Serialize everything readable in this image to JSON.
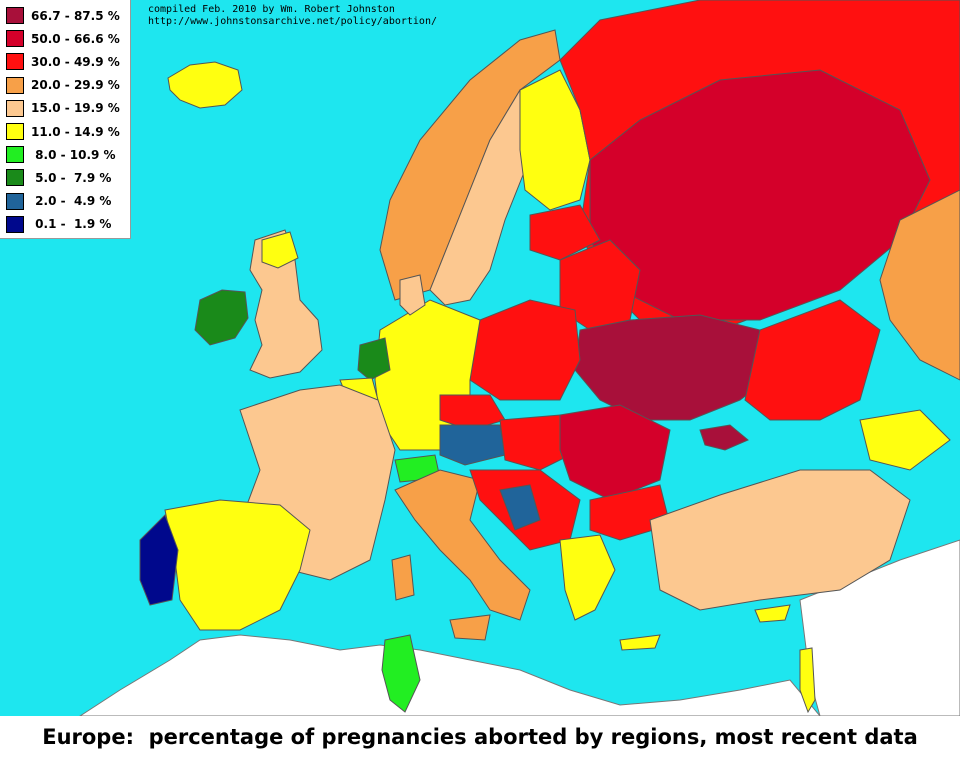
{
  "credit": {
    "line1": "compiled Feb. 2010 by Wm. Robert Johnston",
    "line2": "http://www.johnstonsarchive.net/policy/abortion/"
  },
  "caption": "Europe:  percentage of pregnancies aborted by regions, most recent data",
  "legend": [
    {
      "label": "66.7 - 87.5 %",
      "color": "#a8103a"
    },
    {
      "label": "50.0 - 66.6 %",
      "color": "#d4002a"
    },
    {
      "label": "30.0 - 49.9 %",
      "color": "#ff1010"
    },
    {
      "label": "20.0 - 29.9 %",
      "color": "#f7a048"
    },
    {
      "label": "15.0 - 19.9 %",
      "color": "#fcc890"
    },
    {
      "label": "11.0 - 14.9 %",
      "color": "#ffff10"
    },
    {
      "label": " 8.0 - 10.9 %",
      "color": "#22ee22"
    },
    {
      "label": " 5.0 -  7.9 %",
      "color": "#1a8a1a"
    },
    {
      "label": " 2.0 -  4.9 %",
      "color": "#20649a"
    },
    {
      "label": " 0.1 -  1.9 %",
      "color": "#00088c"
    }
  ],
  "colors": {
    "sea": "#1ee6ef",
    "non_europe_land": "#ffffff"
  }
}
